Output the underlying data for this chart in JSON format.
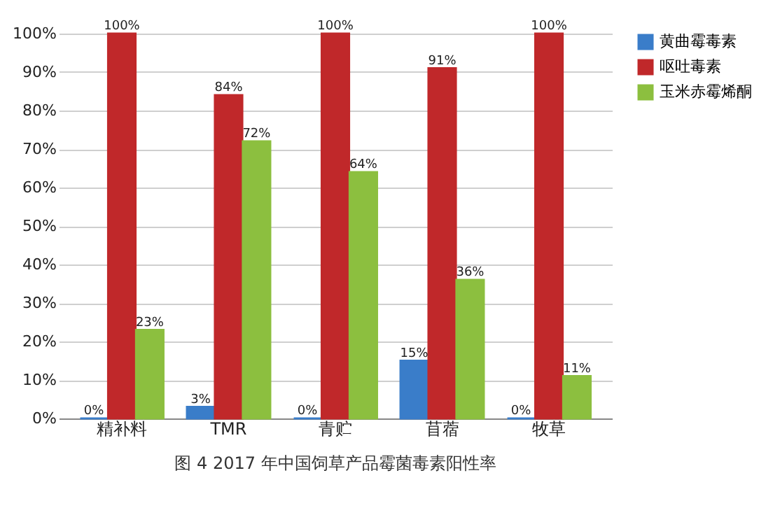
{
  "chart_data": {
    "type": "bar",
    "categories": [
      "精补料",
      "TMR",
      "青贮",
      "苜蓿",
      "牧草"
    ],
    "series": [
      {
        "name": "黄曲霉毒素",
        "color": "#3a7dc9",
        "values": [
          0,
          3,
          0,
          15,
          0
        ],
        "value_labels": [
          "0%",
          "3%",
          "0%",
          "15%",
          "0%"
        ]
      },
      {
        "name": "呕吐毒素",
        "color": "#c0282a",
        "values": [
          100,
          84,
          100,
          91,
          100
        ],
        "value_labels": [
          "100%",
          "84%",
          "100%",
          "91%",
          "100%"
        ]
      },
      {
        "name": "玉米赤霉烯酮",
        "color": "#8cbf3f",
        "values": [
          23,
          72,
          64,
          36,
          11
        ],
        "value_labels": [
          "23%",
          "72%",
          "64%",
          "36%",
          "11%"
        ]
      }
    ],
    "ylim": [
      0,
      100
    ],
    "yticks": [
      {
        "value": 0,
        "label": "0%"
      },
      {
        "value": 10,
        "label": "10%"
      },
      {
        "value": 20,
        "label": "20%"
      },
      {
        "value": 30,
        "label": "30%"
      },
      {
        "value": 40,
        "label": "40%"
      },
      {
        "value": 50,
        "label": "50%"
      },
      {
        "value": 60,
        "label": "60%"
      },
      {
        "value": 70,
        "label": "70%"
      },
      {
        "value": 80,
        "label": "80%"
      },
      {
        "value": 90,
        "label": "90%"
      },
      {
        "value": 100,
        "label": "100%"
      }
    ],
    "grid": "y",
    "legend": "right",
    "annotations": [
      "图 4  2017 年中国饲草产品霉菌毒素阳性率"
    ]
  }
}
